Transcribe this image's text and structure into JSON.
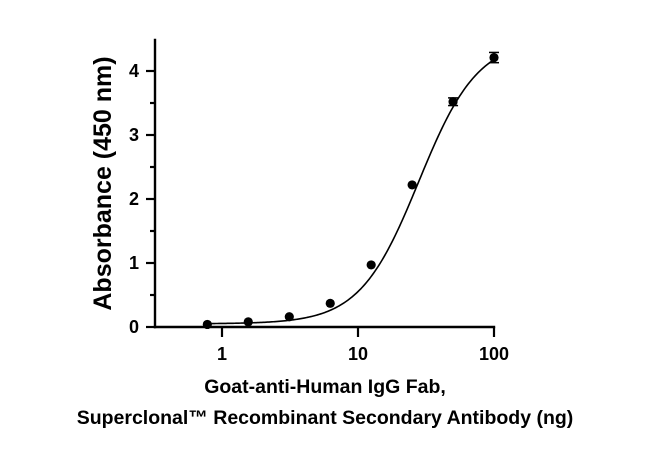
{
  "chart_data": {
    "type": "scatter",
    "xlabel_lines": [
      "Goat-anti-Human IgG Fab,",
      "Superclonal™ Recombinant Secondary Antibody (ng)"
    ],
    "ylabel": "Absorbance (450 nm)",
    "x_scale": "log",
    "xlim": [
      0.4,
      100
    ],
    "ylim": [
      0,
      4.5
    ],
    "x_ticks": [
      1,
      10,
      100
    ],
    "x_tick_labels": [
      "1",
      "10",
      "100"
    ],
    "y_ticks": [
      0,
      1,
      2,
      3,
      4
    ],
    "y_tick_labels": [
      "0",
      "1",
      "2",
      "3",
      "4"
    ],
    "grid": false,
    "legend": false,
    "points": [
      {
        "x": 0.78,
        "y": 0.04,
        "err": 0
      },
      {
        "x": 1.56,
        "y": 0.08,
        "err": 0
      },
      {
        "x": 3.125,
        "y": 0.16,
        "err": 0
      },
      {
        "x": 6.25,
        "y": 0.37,
        "err": 0
      },
      {
        "x": 12.5,
        "y": 0.97,
        "err": 0
      },
      {
        "x": 25,
        "y": 2.22,
        "err": 0
      },
      {
        "x": 50,
        "y": 3.52,
        "err": 0.06
      },
      {
        "x": 100,
        "y": 4.21,
        "err": 0.08
      }
    ],
    "fit": {
      "type": "4PL",
      "bottom": 0.05,
      "top": 4.5,
      "ec50": 28,
      "hill": 2.0
    }
  }
}
